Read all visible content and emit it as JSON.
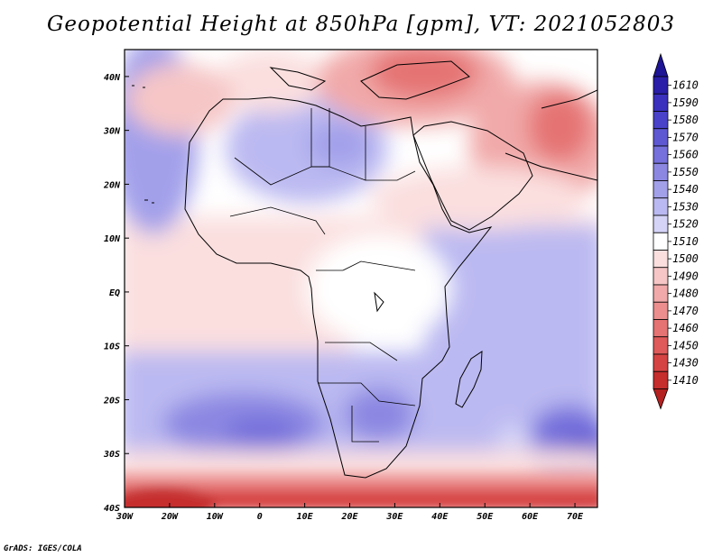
{
  "title": "Geopotential Height at 850hPa [gpm], VT: 2021052803",
  "footer": "GrADS: IGES/COLA",
  "map": {
    "lon_range": [
      -30,
      75
    ],
    "lat_range": [
      -40,
      45
    ],
    "x_ticks": [
      {
        "lon": -30,
        "label": "30W"
      },
      {
        "lon": -20,
        "label": "20W"
      },
      {
        "lon": -10,
        "label": "10W"
      },
      {
        "lon": 0,
        "label": "0"
      },
      {
        "lon": 10,
        "label": "10E"
      },
      {
        "lon": 20,
        "label": "20E"
      },
      {
        "lon": 30,
        "label": "30E"
      },
      {
        "lon": 40,
        "label": "40E"
      },
      {
        "lon": 50,
        "label": "50E"
      },
      {
        "lon": 60,
        "label": "60E"
      },
      {
        "lon": 70,
        "label": "70E"
      }
    ],
    "y_ticks": [
      {
        "lat": 40,
        "label": "40N"
      },
      {
        "lat": 30,
        "label": "30N"
      },
      {
        "lat": 20,
        "label": "20N"
      },
      {
        "lat": 10,
        "label": "10N"
      },
      {
        "lat": 0,
        "label": "EQ"
      },
      {
        "lat": -10,
        "label": "10S"
      },
      {
        "lat": -20,
        "label": "20S"
      },
      {
        "lat": -30,
        "label": "30S"
      },
      {
        "lat": -40,
        "label": "40S"
      }
    ]
  },
  "colorbar": {
    "levels": [
      {
        "label": "1610",
        "color": "#2a1ea8"
      },
      {
        "label": "1590",
        "color": "#3a30bd"
      },
      {
        "label": "1580",
        "color": "#4a42c9"
      },
      {
        "label": "1570",
        "color": "#5f58d3"
      },
      {
        "label": "1560",
        "color": "#7570db"
      },
      {
        "label": "1550",
        "color": "#8c88e2"
      },
      {
        "label": "1540",
        "color": "#a3a0ea"
      },
      {
        "label": "1530",
        "color": "#bbb9f1"
      },
      {
        "label": "1520",
        "color": "#d5d4f7"
      },
      {
        "label": "1510",
        "color": "#ffffff"
      },
      {
        "label": "1500",
        "color": "#fbdfdf"
      },
      {
        "label": "1490",
        "color": "#f6c6c6"
      },
      {
        "label": "1480",
        "color": "#f1a9a9"
      },
      {
        "label": "1470",
        "color": "#ec8e8e"
      },
      {
        "label": "1460",
        "color": "#e57373"
      },
      {
        "label": "1450",
        "color": "#df5a5a"
      },
      {
        "label": "1430",
        "color": "#d64343"
      },
      {
        "label": "1410",
        "color": "#c62d2d"
      }
    ],
    "top_arrow_color": "#1e1496",
    "bottom_arrow_color": "#b52020"
  }
}
